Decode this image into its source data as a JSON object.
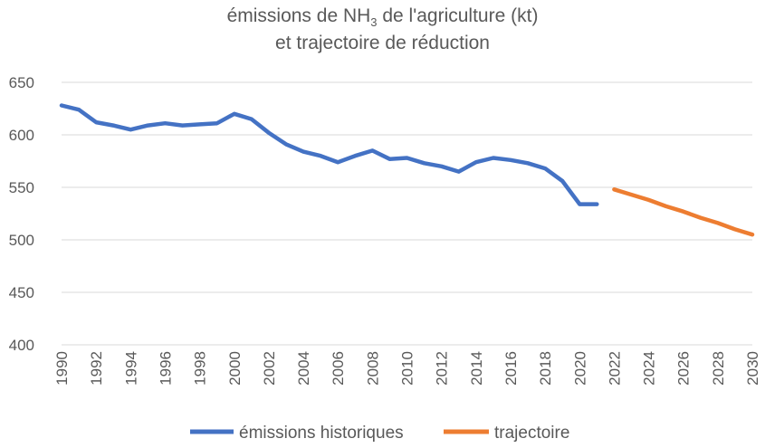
{
  "chart_data": {
    "type": "line",
    "title_line1_pre": "émissions de NH",
    "title_line1_sub": "3",
    "title_line1_post": " de l'agriculture (kt)",
    "title_line2": "et trajectoire de réduction",
    "ylim": [
      400,
      650
    ],
    "yticks": [
      400,
      450,
      500,
      550,
      600,
      650
    ],
    "xlim": [
      1990,
      2030
    ],
    "xticks": [
      1990,
      1992,
      1994,
      1996,
      1998,
      2000,
      2002,
      2004,
      2006,
      2008,
      2010,
      2012,
      2014,
      2016,
      2018,
      2020,
      2022,
      2024,
      2026,
      2028,
      2030
    ],
    "grid": "horizontal",
    "legend_position": "bottom",
    "series": [
      {
        "name": "émissions historiques",
        "color": "#4472C4",
        "x": [
          1990,
          1991,
          1992,
          1993,
          1994,
          1995,
          1996,
          1997,
          1998,
          1999,
          2000,
          2001,
          2002,
          2003,
          2004,
          2005,
          2006,
          2007,
          2008,
          2009,
          2010,
          2011,
          2012,
          2013,
          2014,
          2015,
          2016,
          2017,
          2018,
          2019,
          2020,
          2021
        ],
        "values": [
          628,
          624,
          612,
          609,
          605,
          609,
          611,
          609,
          610,
          611,
          620,
          615,
          602,
          591,
          584,
          580,
          574,
          580,
          585,
          577,
          578,
          573,
          570,
          565,
          574,
          578,
          576,
          573,
          568,
          556,
          534,
          534
        ]
      },
      {
        "name": "trajectoire",
        "color": "#ED7D31",
        "x": [
          2022,
          2023,
          2024,
          2025,
          2026,
          2027,
          2028,
          2029,
          2030
        ],
        "values": [
          548,
          543,
          538,
          532,
          527,
          521,
          516,
          510,
          505
        ]
      }
    ]
  }
}
